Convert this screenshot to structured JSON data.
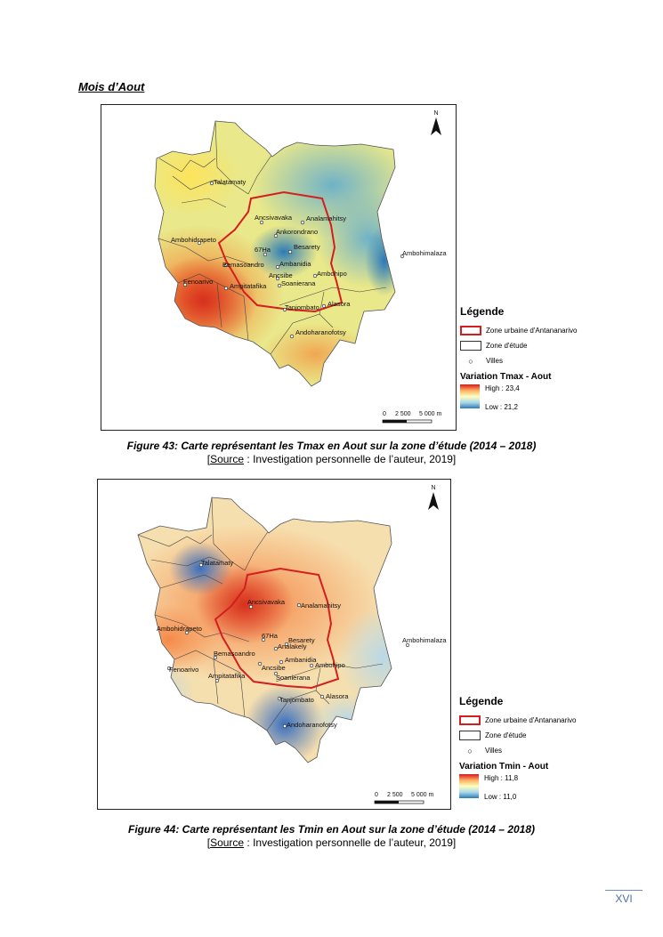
{
  "section_title": "Mois d’Aout",
  "legend_labels": {
    "title": "Légende",
    "urban": "Zone urbaine d'Antananarivo",
    "zone": "Zone d'étude",
    "villes": "Villes"
  },
  "north_label": "N",
  "scale": {
    "t0": "0",
    "t1": "2 500",
    "t2": "5 000 m"
  },
  "maps": [
    {
      "variation_title": "Variation Tmax - Aout",
      "high": "High : 23,4",
      "low": "Low : 21,2",
      "ramp_colors": [
        "#d7191c",
        "#fdae61",
        "#ffffbf",
        "#abd9e9",
        "#2c7bb6"
      ],
      "places": [
        "Talatamaty",
        "Ancsivavaka",
        "Analamahitsy",
        "Ankorondrano",
        "Ambohidrapeto",
        "67Ha",
        "Besarety",
        "Bemasoandro",
        "Ambanidia",
        "Ambohipo",
        "Fenoarivo",
        "Ampitatafika",
        "Ancsibe",
        "Soanierana",
        "Tanjombato",
        "Alasora",
        "Andoharanofotsy",
        "Ambohimalaza"
      ],
      "figure": "Figure 43: Carte représentant les Tmax en Aout sur la zone d’étude (2014 – 2018)",
      "source_word": "Source",
      "source_rest": " : Investigation personnelle de l’auteur, 2019]"
    },
    {
      "variation_title": "Variation Tmin - Aout",
      "high": "High : 11,8",
      "low": "Low : 11,0",
      "ramp_colors": [
        "#d7191c",
        "#fdae61",
        "#ffffbf",
        "#abd9e9",
        "#2c7bb6"
      ],
      "places": [
        "Talatamaty",
        "Ancsivavaka",
        "Analamahitsy",
        "Ambohidrapeto",
        "67Ha",
        "Besarety",
        "Analakely",
        "Bemasoandro",
        "Ambanidia",
        "Ambohipo",
        "Fenoarivo",
        "Ampitatafika",
        "Ancsibe",
        "Soanierana",
        "Tanjombato",
        "Alasora",
        "Andoharanofotsy",
        "Ambohimalaza"
      ],
      "figure": "Figure 44: Carte représentant les Tmin en Aout sur la zone d’étude (2014 – 2018)",
      "source_word": "Source",
      "source_rest": " : Investigation personnelle de l’auteur, 2019]"
    }
  ],
  "page_number": "XVI"
}
